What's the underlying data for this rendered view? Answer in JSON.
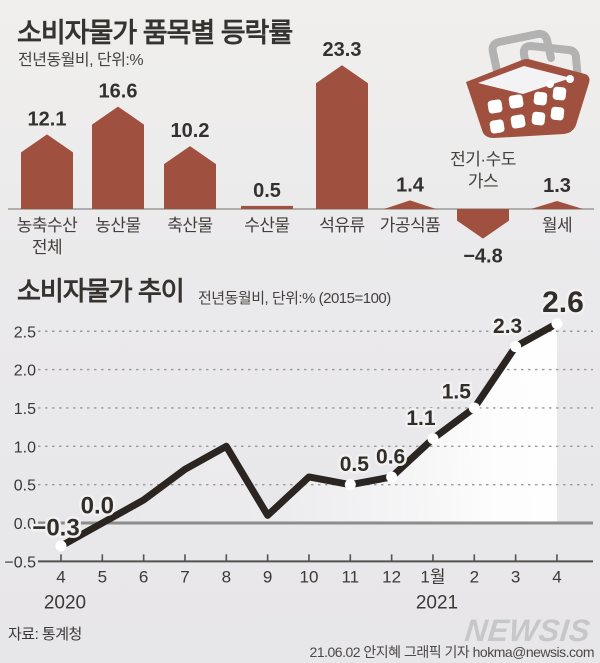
{
  "colors": {
    "bar_fill": "#a0503f",
    "line_stroke": "#2b2522",
    "grid_dotted": "#9a9a9a",
    "zero_line": "#8c8c8c",
    "axis_line": "#55524f",
    "baseline": "#9b9998",
    "text_dark": "#35322f",
    "text_label": "#43403d",
    "dot_fill": "#ffffff",
    "area_white": "#ffffff",
    "basket_body": "#a0503f",
    "basket_handle": "#b2b2b2",
    "watermark_gray": "#c7c7c9"
  },
  "header": {
    "title": "소비자물가 품목별 등락률",
    "subtitle": "전년동월비, 단위:%"
  },
  "trend_header": {
    "title": "소비자물가 추이",
    "subtitle": "전년동월비, 단위:%  (2015=100)"
  },
  "icons": {
    "basket": "shopping-basket-icon"
  },
  "footer": {
    "source": "자료: 통계청",
    "watermark": "NEWSIS",
    "credit": "21.06.02 안지혜 그래픽 기자 hokma@newsis.com"
  },
  "chart_data": [
    {
      "type": "bar",
      "title": "소비자물가 품목별 등락률",
      "subtitle": "전년동월비, 단위:%",
      "unit": "%",
      "categories": [
        "농축수산 전체",
        "농산물",
        "축산물",
        "수산물",
        "석유류",
        "가공식품",
        "전기·수도 가스",
        "월세"
      ],
      "category_lines": [
        [
          "농축수산",
          "전체"
        ],
        [
          "농산물"
        ],
        [
          "축산물"
        ],
        [
          "수산물"
        ],
        [
          "석유류"
        ],
        [
          "가공식품"
        ],
        [
          "전기·수도",
          "가스"
        ],
        [
          "월세"
        ]
      ],
      "values": [
        12.1,
        16.6,
        10.2,
        0.5,
        23.3,
        1.4,
        -4.8,
        1.3
      ],
      "value_labels": [
        "12.1",
        "16.6",
        "10.2",
        "0.5",
        "23.3",
        "1.4",
        "−4.8",
        "1.3"
      ]
    },
    {
      "type": "line",
      "title": "소비자물가 추이",
      "subtitle": "전년동월비, 단위:% (2015=100)",
      "x": [
        "4",
        "5",
        "6",
        "7",
        "8",
        "9",
        "10",
        "11",
        "12",
        "1월",
        "2",
        "3",
        "4"
      ],
      "year_labels": [
        {
          "text": "2020",
          "index": 0
        },
        {
          "text": "2021",
          "index": 9
        }
      ],
      "values": [
        -0.3,
        0.0,
        0.3,
        0.7,
        1.0,
        0.1,
        0.6,
        0.5,
        0.6,
        1.1,
        1.5,
        2.3,
        2.6
      ],
      "point_labels": {
        "0": "−0.3",
        "1": "0.0",
        "7": "0.5",
        "8": "0.6",
        "9": "1.1",
        "10": "1.5",
        "11": "2.3",
        "12": "2.6"
      },
      "dot_indices": [
        0,
        7,
        8,
        9,
        10,
        11,
        12
      ],
      "emphasis_index": 12,
      "y_ticks": [
        2.5,
        2.0,
        1.5,
        1.0,
        0.5,
        0.0,
        -0.5
      ],
      "y_tick_labels": [
        "2.5",
        "2.0",
        "1.5",
        "1.0",
        "0.5",
        "0.0",
        "−0.5"
      ],
      "ylim": [
        -0.5,
        2.6
      ],
      "grid": "dotted-horizontal",
      "legend": "none"
    }
  ]
}
